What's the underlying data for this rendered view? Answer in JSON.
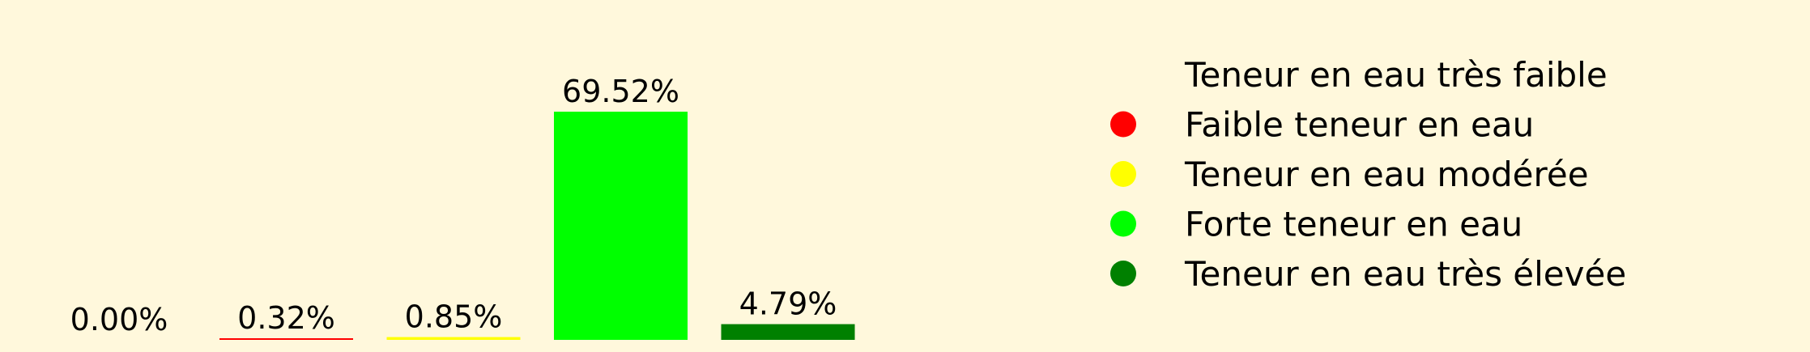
{
  "chart_data": {
    "type": "bar",
    "title": "",
    "xlabel": "",
    "ylabel": "",
    "ylim": [
      0,
      70
    ],
    "grid": false,
    "legend_position": "right",
    "categories": [
      "Teneur en eau très faible",
      "Faible teneur en eau",
      "Teneur en eau modérée",
      "Forte teneur en eau",
      "Teneur en eau très élevée"
    ],
    "values": [
      0.0,
      0.32,
      0.85,
      69.52,
      4.79
    ],
    "value_labels": [
      "0.00%",
      "0.32%",
      "0.85%",
      "69.52%",
      "4.79%"
    ],
    "colors": [
      "#FFF8DC",
      "#FF0000",
      "#FFFF00",
      "#00FF00",
      "#008000"
    ],
    "legend": [
      {
        "label": "Teneur en eau très faible",
        "color": "#FFF8DC"
      },
      {
        "label": "Faible teneur en eau",
        "color": "#FF0000"
      },
      {
        "label": "Teneur en eau modérée",
        "color": "#FFFF00"
      },
      {
        "label": "Forte teneur en eau",
        "color": "#00FF00"
      },
      {
        "label": "Teneur en eau très élevée",
        "color": "#008000"
      }
    ]
  },
  "background_color": "#FFF8DC"
}
